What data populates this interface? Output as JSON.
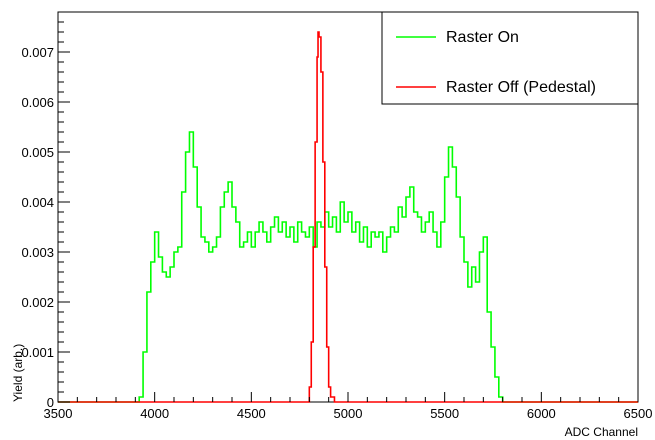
{
  "chart_data": {
    "type": "line",
    "title": "",
    "xlabel": "ADC Channel",
    "ylabel": "Yield (arb.)",
    "xlim": [
      3500,
      6500
    ],
    "ylim": [
      0,
      0.0078
    ],
    "x_ticks": [
      3500,
      4000,
      4500,
      5000,
      5500,
      6000,
      6500
    ],
    "x_tick_labels": [
      "3500",
      "4000",
      "4500",
      "5000",
      "5500",
      "6000",
      "6500"
    ],
    "y_ticks": [
      0,
      0.001,
      0.002,
      0.003,
      0.004,
      0.005,
      0.006,
      0.007
    ],
    "y_tick_labels": [
      "0",
      "0.001",
      "0.002",
      "0.003",
      "0.004",
      "0.005",
      "0.006",
      "0.007"
    ],
    "grid": false,
    "legend_position": "top-right",
    "series": [
      {
        "name": "Raster On",
        "color": "#00ff00",
        "style": "histogram-step",
        "x": [
          3500,
          3900,
          3920,
          3940,
          3960,
          3980,
          4000,
          4020,
          4040,
          4060,
          4080,
          4100,
          4120,
          4140,
          4160,
          4180,
          4200,
          4220,
          4240,
          4260,
          4280,
          4300,
          4320,
          4340,
          4360,
          4380,
          4400,
          4420,
          4440,
          4460,
          4480,
          4500,
          4520,
          4540,
          4560,
          4580,
          4600,
          4620,
          4640,
          4660,
          4680,
          4700,
          4720,
          4740,
          4760,
          4780,
          4800,
          4820,
          4840,
          4860,
          4880,
          4900,
          4920,
          4940,
          4960,
          4980,
          5000,
          5020,
          5040,
          5060,
          5080,
          5100,
          5120,
          5140,
          5160,
          5180,
          5200,
          5220,
          5240,
          5260,
          5280,
          5300,
          5320,
          5340,
          5360,
          5380,
          5400,
          5420,
          5440,
          5460,
          5480,
          5500,
          5520,
          5540,
          5560,
          5580,
          5600,
          5620,
          5640,
          5660,
          5680,
          5700,
          5720,
          5740,
          5760,
          5780,
          5800,
          5820,
          5840,
          6500
        ],
        "y": [
          0,
          0,
          0.0001,
          0.001,
          0.0022,
          0.0028,
          0.0034,
          0.0029,
          0.0026,
          0.0025,
          0.0027,
          0.003,
          0.0031,
          0.0042,
          0.005,
          0.0054,
          0.0047,
          0.0039,
          0.0033,
          0.0032,
          0.003,
          0.0031,
          0.0033,
          0.0039,
          0.0042,
          0.0044,
          0.0039,
          0.0036,
          0.0031,
          0.0032,
          0.0034,
          0.0031,
          0.0034,
          0.0036,
          0.0034,
          0.0032,
          0.0035,
          0.0037,
          0.0034,
          0.0036,
          0.0033,
          0.0035,
          0.0032,
          0.0036,
          0.0034,
          0.0033,
          0.0035,
          0.0031,
          0.0036,
          0.0035,
          0.0038,
          0.0035,
          0.0037,
          0.0034,
          0.004,
          0.0036,
          0.0038,
          0.0034,
          0.0036,
          0.0032,
          0.0035,
          0.0031,
          0.0034,
          0.0033,
          0.0034,
          0.003,
          0.0033,
          0.0035,
          0.0034,
          0.0039,
          0.0037,
          0.0041,
          0.0043,
          0.0038,
          0.0037,
          0.0034,
          0.0036,
          0.0038,
          0.0034,
          0.0031,
          0.0036,
          0.0045,
          0.0051,
          0.0047,
          0.0041,
          0.0033,
          0.0028,
          0.0023,
          0.0027,
          0.0024,
          0.003,
          0.0033,
          0.0018,
          0.0011,
          0.0005,
          0.0001,
          0,
          0,
          0,
          0
        ]
      },
      {
        "name": "Raster Off (Pedestal)",
        "color": "#ff0000",
        "style": "histogram-step",
        "x": [
          3500,
          4780,
          4800,
          4810,
          4820,
          4830,
          4840,
          4845,
          4850,
          4860,
          4870,
          4880,
          4890,
          4900,
          4910,
          4930,
          6500
        ],
        "y": [
          0,
          0,
          0.0003,
          0.0012,
          0.0031,
          0.0052,
          0.0069,
          0.0074,
          0.0073,
          0.0066,
          0.0048,
          0.0027,
          0.0011,
          0.0003,
          0.0001,
          0,
          0
        ]
      }
    ]
  }
}
